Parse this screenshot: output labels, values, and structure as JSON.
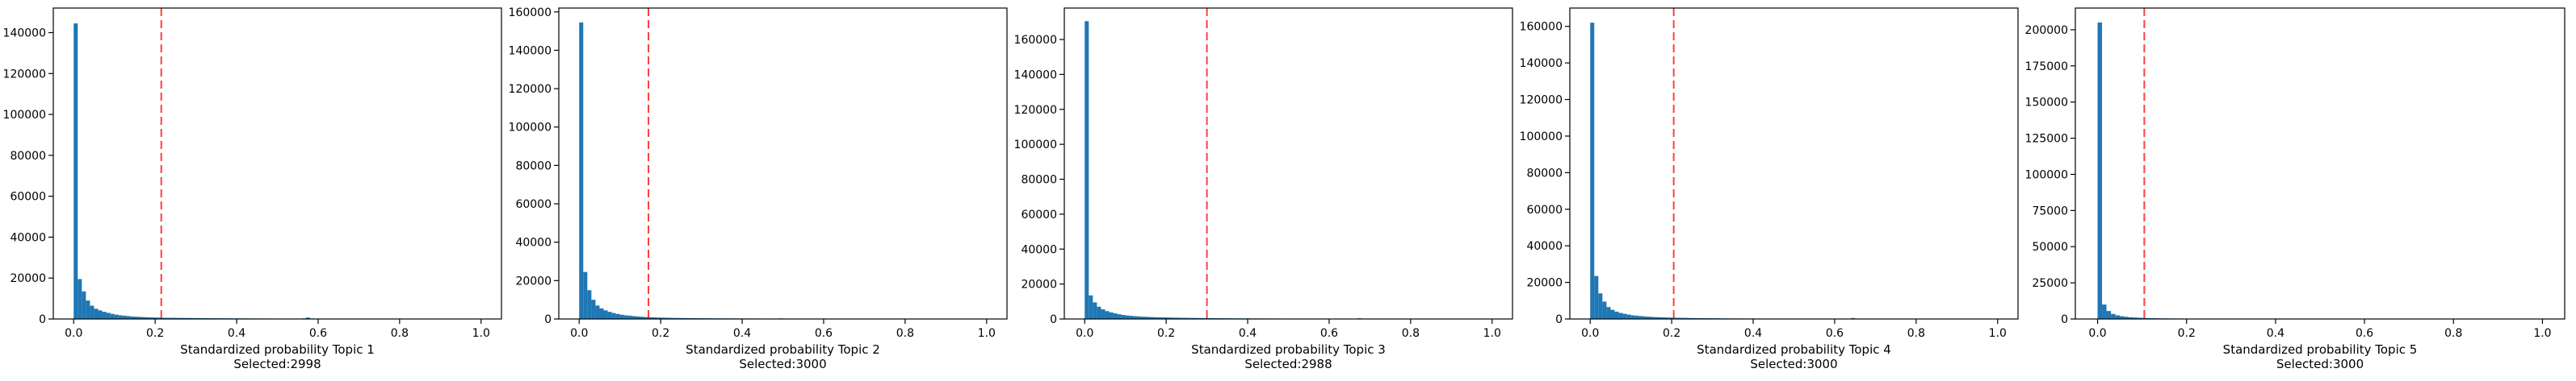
{
  "colors": {
    "bar": "#1f77b4",
    "threshold_line": "#ff0000",
    "axis": "#000000",
    "background": "#ffffff"
  },
  "chart_data": [
    {
      "type": "bar",
      "xlabel": "Standardized probability Topic 1",
      "caption": "Selected:2998",
      "xlim": [
        -0.05,
        1.05
      ],
      "ylim": [
        0,
        152000
      ],
      "xticks": [
        "0.0",
        "0.2",
        "0.4",
        "0.6",
        "0.8",
        "1.0"
      ],
      "yticks": [
        0,
        20000,
        40000,
        60000,
        80000,
        100000,
        120000,
        140000
      ],
      "threshold": 0.215,
      "bin_width": 0.01,
      "values": [
        144500,
        19500,
        13500,
        9000,
        6500,
        5000,
        4200,
        3500,
        3000,
        2500,
        2100,
        1800,
        1600,
        1400,
        1200,
        1100,
        1000,
        900,
        800,
        750,
        700,
        650,
        600,
        580,
        560,
        540,
        520,
        500,
        480,
        460,
        440,
        420,
        400,
        380,
        360,
        340,
        330,
        320,
        310,
        300,
        290,
        280,
        270,
        260,
        250,
        240,
        230,
        220,
        210,
        200,
        190,
        180,
        170,
        160,
        150,
        140,
        300,
        700,
        250,
        120,
        110,
        100,
        90,
        80,
        70,
        60,
        50,
        40,
        30,
        20,
        15,
        10,
        8,
        6,
        5,
        4,
        3,
        2,
        1,
        1,
        1,
        1,
        1,
        1,
        1,
        1,
        1,
        1,
        1,
        1,
        1,
        1,
        1,
        1,
        1,
        1,
        1,
        1,
        1,
        1
      ]
    },
    {
      "type": "bar",
      "xlabel": "Standardized probability Topic 2",
      "caption": "Selected:3000",
      "xlim": [
        -0.05,
        1.05
      ],
      "ylim": [
        0,
        162000
      ],
      "xticks": [
        "0.0",
        "0.2",
        "0.4",
        "0.6",
        "0.8",
        "1.0"
      ],
      "yticks": [
        0,
        20000,
        40000,
        60000,
        80000,
        100000,
        120000,
        140000,
        160000
      ],
      "threshold": 0.17,
      "bin_width": 0.01,
      "values": [
        154500,
        24500,
        15000,
        10000,
        7000,
        5500,
        4500,
        3700,
        3100,
        2600,
        2200,
        1900,
        1700,
        1500,
        1300,
        1150,
        1000,
        900,
        820,
        760,
        700,
        650,
        600,
        560,
        530,
        500,
        470,
        440,
        420,
        400,
        380,
        360,
        340,
        330,
        320,
        310,
        300,
        290,
        280,
        270,
        260,
        250,
        240,
        230,
        220,
        210,
        200,
        190,
        180,
        300,
        150,
        100,
        80,
        60,
        50,
        40,
        30,
        20,
        15,
        10,
        8,
        6,
        5,
        4,
        3,
        2,
        1,
        1,
        1,
        1,
        1,
        1,
        1,
        1,
        1,
        1,
        1,
        1,
        1,
        1,
        1,
        1,
        1,
        1,
        1,
        1,
        1,
        1,
        1,
        1,
        1,
        1,
        1,
        1,
        1,
        1,
        1,
        1,
        1,
        1
      ]
    },
    {
      "type": "bar",
      "xlabel": "Standardized probability Topic 3",
      "caption": "Selected:2988",
      "xlim": [
        -0.05,
        1.05
      ],
      "ylim": [
        0,
        178000
      ],
      "xticks": [
        "0.0",
        "0.2",
        "0.4",
        "0.6",
        "0.8",
        "1.0"
      ],
      "yticks": [
        0,
        20000,
        40000,
        60000,
        80000,
        100000,
        120000,
        140000,
        160000
      ],
      "threshold": 0.3,
      "bin_width": 0.01,
      "values": [
        170500,
        13500,
        9500,
        7000,
        5500,
        4500,
        3800,
        3200,
        2700,
        2300,
        2000,
        1800,
        1600,
        1450,
        1300,
        1200,
        1100,
        1000,
        950,
        900,
        850,
        800,
        760,
        720,
        680,
        640,
        600,
        570,
        540,
        510,
        480,
        460,
        440,
        420,
        400,
        380,
        360,
        350,
        340,
        330,
        320,
        310,
        300,
        290,
        280,
        270,
        260,
        250,
        240,
        230,
        220,
        210,
        200,
        190,
        180,
        170,
        160,
        150,
        140,
        130,
        120,
        110,
        100,
        90,
        80,
        70,
        60,
        400,
        50,
        40,
        30,
        20,
        15,
        10,
        8,
        6,
        5,
        4,
        3,
        2,
        1,
        1,
        1,
        1,
        1,
        1,
        1,
        1,
        1,
        1,
        1,
        1,
        1,
        1,
        1,
        1,
        1,
        1,
        1,
        1
      ]
    },
    {
      "type": "bar",
      "xlabel": "Standardized probability Topic 4",
      "caption": "Selected:3000",
      "xlim": [
        -0.05,
        1.05
      ],
      "ylim": [
        0,
        170000
      ],
      "xticks": [
        "0.0",
        "0.2",
        "0.4",
        "0.6",
        "0.8",
        "1.0"
      ],
      "yticks": [
        0,
        20000,
        40000,
        60000,
        80000,
        100000,
        120000,
        140000,
        160000
      ],
      "threshold": 0.205,
      "bin_width": 0.01,
      "values": [
        162000,
        23500,
        14000,
        9500,
        6500,
        5000,
        4000,
        3300,
        2800,
        2400,
        2000,
        1800,
        1600,
        1400,
        1250,
        1100,
        1000,
        920,
        850,
        780,
        720,
        670,
        620,
        580,
        540,
        500,
        470,
        440,
        420,
        400,
        380,
        360,
        340,
        320,
        300,
        290,
        280,
        270,
        260,
        250,
        240,
        230,
        220,
        210,
        200,
        190,
        180,
        170,
        160,
        150,
        140,
        130,
        120,
        110,
        100,
        90,
        80,
        70,
        60,
        50,
        40,
        35,
        30,
        200,
        500,
        25,
        20,
        15,
        10,
        8,
        6,
        5,
        4,
        3,
        2,
        1,
        1,
        1,
        1,
        1,
        1,
        1,
        1,
        1,
        1,
        1,
        1,
        1,
        1,
        1,
        1,
        1,
        1,
        1,
        1,
        1,
        1,
        1,
        1,
        1
      ]
    },
    {
      "type": "bar",
      "xlabel": "Standardized probability Topic 5",
      "caption": "Selected:3000",
      "xlim": [
        -0.05,
        1.05
      ],
      "ylim": [
        0,
        215000
      ],
      "xticks": [
        "0.0",
        "0.2",
        "0.4",
        "0.6",
        "0.8",
        "1.0"
      ],
      "yticks": [
        0,
        25000,
        50000,
        75000,
        100000,
        125000,
        150000,
        175000,
        200000
      ],
      "threshold": 0.105,
      "bin_width": 0.01,
      "values": [
        205000,
        10000,
        5500,
        3500,
        2500,
        1900,
        1500,
        1200,
        1000,
        850,
        720,
        620,
        540,
        480,
        430,
        390,
        350,
        320,
        290,
        270,
        250,
        230,
        210,
        195,
        180,
        170,
        160,
        150,
        140,
        130,
        120,
        110,
        100,
        95,
        90,
        85,
        80,
        75,
        70,
        65,
        300,
        60,
        55,
        50,
        45,
        40,
        35,
        30,
        25,
        20,
        18,
        16,
        14,
        12,
        10,
        8,
        6,
        5,
        4,
        3,
        2,
        1,
        1,
        1,
        1,
        1,
        1,
        1,
        1,
        1,
        1,
        1,
        1,
        1,
        1,
        1,
        1,
        1,
        1,
        1,
        1,
        1,
        1,
        1,
        1,
        1,
        1,
        1,
        1,
        1,
        1,
        1,
        1,
        1,
        1,
        1,
        1,
        1,
        1,
        1
      ]
    }
  ]
}
